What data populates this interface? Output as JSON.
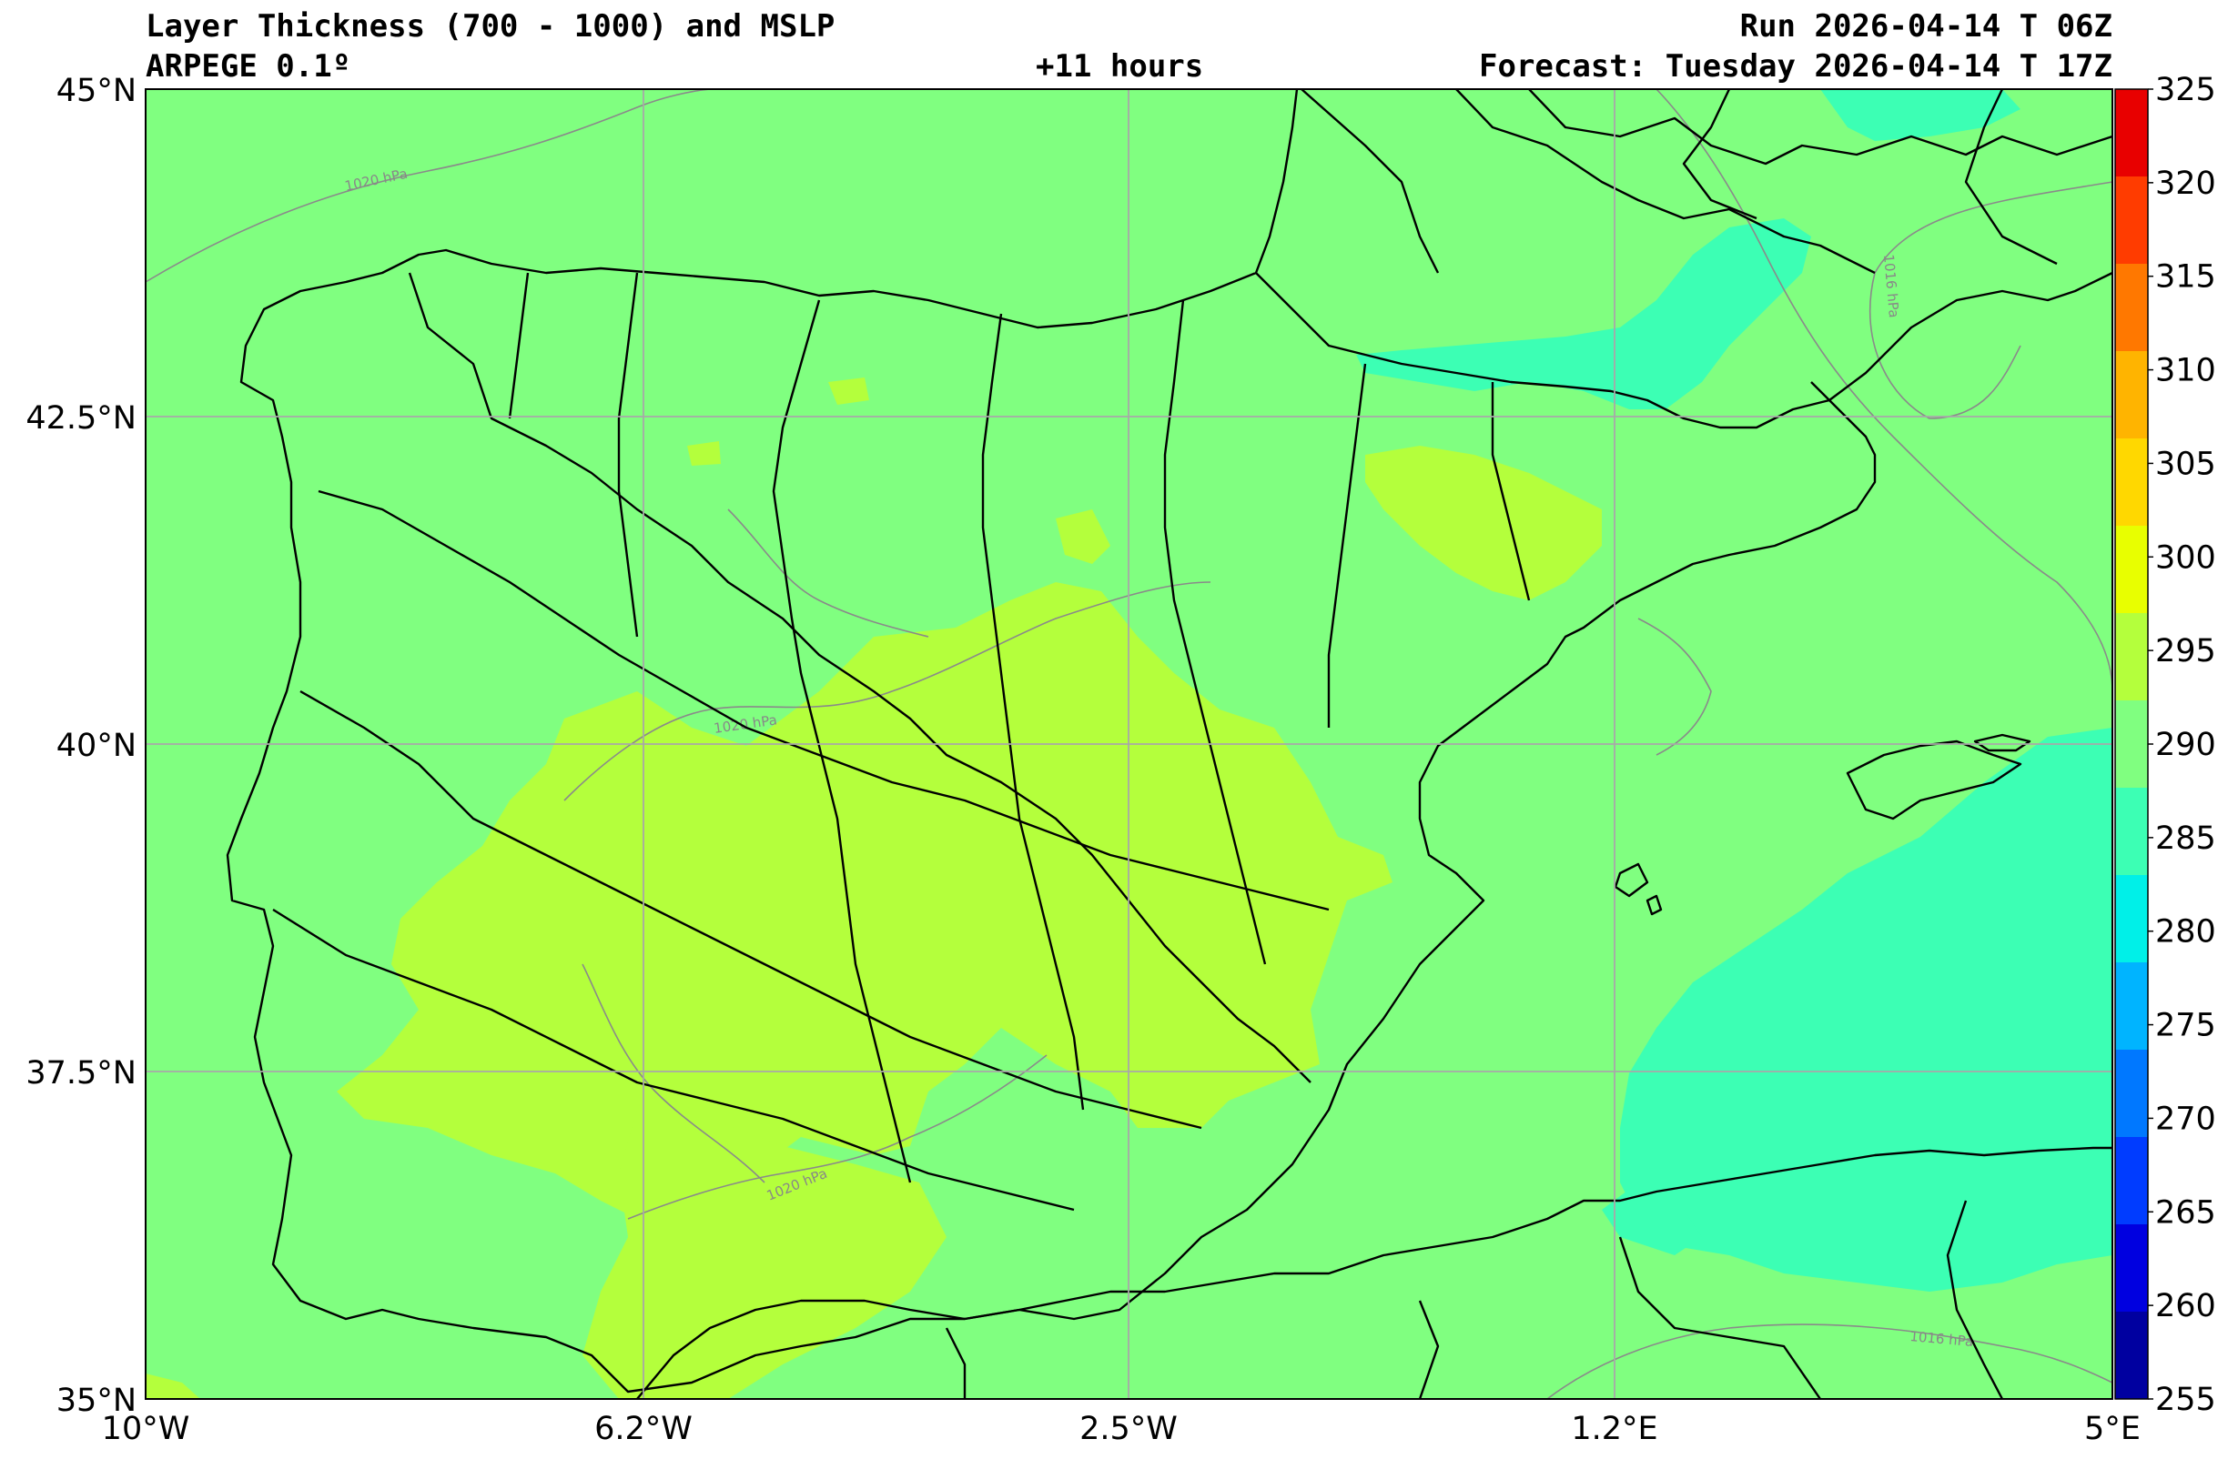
{
  "header": {
    "title": "Layer Thickness (700 - 1000) and MSLP",
    "model": "ARPEGE 0.1º",
    "lead": "+11 hours",
    "run": "Run 2026-04-14 T 06Z",
    "forecast": "Forecast: Tuesday 2026-04-14 T 17Z"
  },
  "axes": {
    "lat_labels": [
      "45°N",
      "42.5°N",
      "40°N",
      "37.5°N",
      "35°N"
    ],
    "lon_labels": [
      "10°W",
      "6.2°W",
      "2.5°W",
      "1.2°E",
      "5°E"
    ]
  },
  "colorbar": {
    "ticks": [
      "325",
      "320",
      "315",
      "310",
      "305",
      "300",
      "295",
      "290",
      "285",
      "280",
      "275",
      "270",
      "265",
      "260",
      "255"
    ],
    "colors": [
      "#e80000",
      "#ff3c00",
      "#ff7800",
      "#ffb400",
      "#ffd800",
      "#e8ff00",
      "#b4ff3c",
      "#80ff80",
      "#3cffb4",
      "#00f0e8",
      "#00b4ff",
      "#0078ff",
      "#003cff",
      "#0000e0",
      "#0000a0"
    ]
  },
  "isobars": {
    "labels": [
      "1020 hPa",
      "1020 hPa",
      "1020 hPa",
      "1016 hPa",
      "1016 hPa"
    ]
  },
  "field_colors": {
    "t290_295": "#80ff80",
    "t295_300": "#b4ff3c",
    "t285_290": "#3cffb4"
  }
}
